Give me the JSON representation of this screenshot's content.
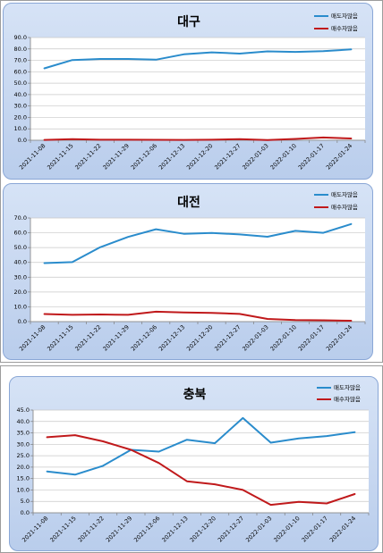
{
  "chart_data": [
    {
      "type": "line",
      "title": "대구",
      "x": [
        "2021-11-08",
        "2021-11-15",
        "2021-11-22",
        "2021-11-29",
        "2021-12-06",
        "2021-12-13",
        "2021-12-20",
        "2021-12-27",
        "2022-01-03",
        "2022-01-10",
        "2022-01-17",
        "2022-01-24"
      ],
      "ylim": [
        0,
        90
      ],
      "yticks": [
        "0.0",
        "10.0",
        "20.0",
        "30.0",
        "40.0",
        "50.0",
        "60.0",
        "70.0",
        "80.0",
        "90.0"
      ],
      "grid": true,
      "legend": "top-right",
      "series": [
        {
          "name": "매도자많음",
          "color": "#2a8ccc",
          "values": [
            63,
            70.3,
            71.2,
            71.2,
            70.6,
            75.3,
            77.0,
            75.9,
            77.9,
            77.4,
            78.0,
            79.6
          ]
        },
        {
          "name": "매수자많음",
          "color": "#c0191b",
          "values": [
            0.3,
            1.0,
            0.5,
            0.5,
            0.4,
            0.3,
            0.5,
            1.0,
            0.2,
            1.2,
            2.4,
            1.6
          ]
        }
      ]
    },
    {
      "type": "line",
      "title": "대전",
      "x": [
        "2021-11-08",
        "2021-11-15",
        "2021-11-22",
        "2021-11-29",
        "2021-12-06",
        "2021-12-13",
        "2021-12-20",
        "2021-12-27",
        "2022-01-03",
        "2022-01-10",
        "2022-01-17",
        "2022-01-24"
      ],
      "ylim": [
        0,
        70
      ],
      "yticks": [
        "0.0",
        "10.0",
        "20.0",
        "30.0",
        "40.0",
        "50.0",
        "60.0",
        "70.0"
      ],
      "grid": true,
      "legend": "top-right",
      "series": [
        {
          "name": "매도자많음",
          "color": "#2a8ccc",
          "values": [
            39.5,
            40.2,
            50.2,
            57.2,
            62.4,
            59.3,
            59.9,
            58.9,
            57.3,
            61.3,
            60.0,
            65.9
          ]
        },
        {
          "name": "매수자많음",
          "color": "#c0191b",
          "values": [
            5.1,
            4.6,
            4.8,
            4.6,
            6.7,
            6.2,
            5.9,
            5.2,
            1.8,
            1.0,
            0.9,
            0.6
          ]
        }
      ]
    },
    {
      "type": "line",
      "title": "충북",
      "x": [
        "2021-11-08",
        "2021-11-15",
        "2021-11-22",
        "2021-11-29",
        "2021-12-06",
        "2021-12-13",
        "2021-12-20",
        "2021-12-27",
        "2022-01-03",
        "2022-01-10",
        "2022-01-17",
        "2022-01-24"
      ],
      "ylim": [
        0,
        45
      ],
      "yticks": [
        "0.0",
        "5.0",
        "10.0",
        "15.0",
        "20.0",
        "25.0",
        "30.0",
        "35.0",
        "40.0",
        "45.0"
      ],
      "grid": true,
      "legend": "top-right",
      "series": [
        {
          "name": "매도자많음",
          "color": "#2a8ccc",
          "values": [
            18.1,
            16.7,
            20.6,
            27.6,
            26.8,
            32.0,
            30.5,
            41.5,
            30.7,
            32.6,
            33.6,
            35.3
          ]
        },
        {
          "name": "매수자많음",
          "color": "#c0191b",
          "values": [
            33.1,
            34.0,
            31.3,
            27.6,
            21.8,
            13.8,
            12.5,
            10.0,
            3.5,
            4.8,
            4.1,
            8.2
          ]
        }
      ]
    }
  ]
}
